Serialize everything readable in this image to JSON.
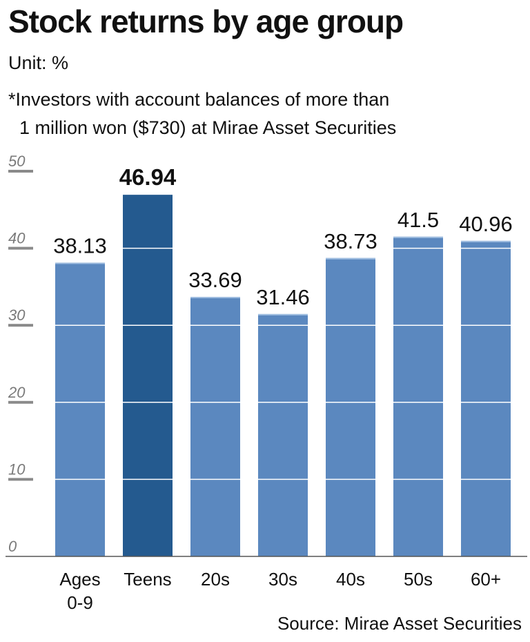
{
  "chart_data": {
    "type": "bar",
    "title": "Stock returns by age group",
    "unit_label": "Unit: %",
    "note_lines": [
      "*Investors with account balances of more than",
      "1 million won ($730) at Mirae Asset Securities"
    ],
    "source": "Source: Mirae Asset Securities",
    "categories": [
      [
        "Ages",
        "0-9"
      ],
      [
        "Teens"
      ],
      [
        "20s"
      ],
      [
        "30s"
      ],
      [
        "40s"
      ],
      [
        "50s"
      ],
      [
        "60+"
      ]
    ],
    "values": [
      38.13,
      46.94,
      33.69,
      31.46,
      38.73,
      41.5,
      40.96
    ],
    "value_labels": [
      "38.13",
      "46.94",
      "33.69",
      "31.46",
      "38.73",
      "41.5",
      "40.96"
    ],
    "highlight_index": 1,
    "ylim": [
      0,
      50
    ],
    "yticks": [
      0,
      10,
      20,
      30,
      40,
      50
    ],
    "grid": true,
    "colors": {
      "bar": "#5b88bf",
      "bar_highlight": "#245a8f",
      "bar_top_edge": "#9fbde0",
      "gridline": "#ffffff",
      "tick_mark": "#8a8a8a",
      "tick_label": "#7a7a7a",
      "axis": "#555555"
    }
  }
}
